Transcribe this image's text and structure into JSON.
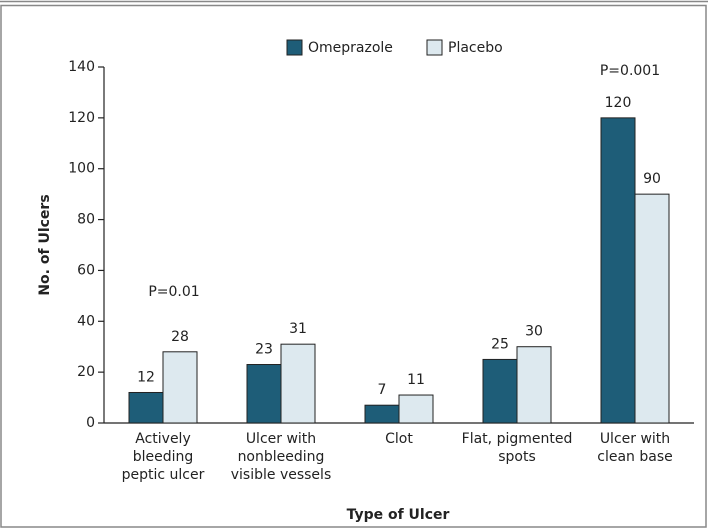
{
  "chart_data": {
    "type": "bar",
    "categories": [
      [
        "Actively",
        "bleeding",
        "peptic ulcer"
      ],
      [
        "Ulcer with",
        "nonbleeding",
        "visible vessels"
      ],
      [
        "Clot"
      ],
      [
        "Flat, pigmented",
        "spots"
      ],
      [
        "Ulcer with",
        "clean base"
      ]
    ],
    "series": [
      {
        "name": "Omeprazole",
        "color": "#1e5d78",
        "values": [
          12,
          23,
          7,
          25,
          120
        ]
      },
      {
        "name": "Placebo",
        "color": "#dde9ef",
        "values": [
          28,
          31,
          11,
          30,
          90
        ]
      }
    ],
    "ylim": [
      0,
      140
    ],
    "yticks": [
      0,
      20,
      40,
      60,
      80,
      100,
      120,
      140
    ],
    "x_label": "Type of Ulcer",
    "y_label": "No. of Ulcers",
    "annotations": [
      "P=0.01",
      "P=0.001"
    ]
  }
}
